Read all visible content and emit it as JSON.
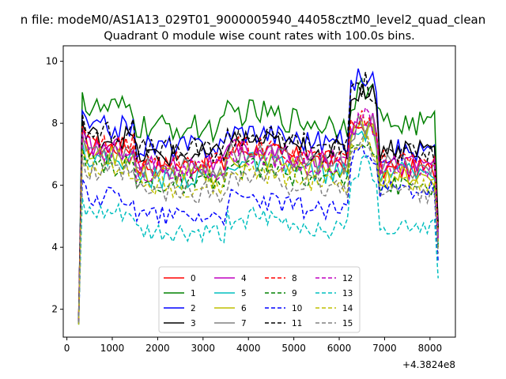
{
  "suptitle": "n file: modeM0/AS1A13_029T01_9000005940_44058cztM0_level2_quad_clean",
  "chart_data": {
    "type": "line",
    "title": "Quadrant 0 module wise count rates with 100.0s bins.",
    "xlabel": "",
    "ylabel": "",
    "x_offset_label": "+4.3824e8",
    "xlim": [
      -80,
      8560
    ],
    "ylim": [
      1.1,
      10.5
    ],
    "xticks": [
      0,
      1000,
      2000,
      3000,
      4000,
      5000,
      6000,
      7000,
      8000
    ],
    "yticks": [
      2,
      4,
      6,
      8,
      10
    ],
    "grid": false,
    "legend_position": "lower-center",
    "legend_columns": 4,
    "series": [
      {
        "name": "0",
        "color": "#ff0000",
        "dash": "solid",
        "base": 7.0,
        "peak": 8.0,
        "drop": 4.4,
        "noise": 0.35,
        "end": 6.5
      },
      {
        "name": "1",
        "color": "#008000",
        "dash": "solid",
        "base": 8.2,
        "peak": 9.2,
        "drop": 4.6,
        "noise": 0.45,
        "end": 8.0
      },
      {
        "name": "2",
        "color": "#0000ff",
        "dash": "solid",
        "base": 7.6,
        "peak": 9.6,
        "drop": 4.4,
        "noise": 0.4,
        "end": 7.1
      },
      {
        "name": "3",
        "color": "#000000",
        "dash": "solid",
        "base": 7.3,
        "peak": 9.2,
        "drop": 4.8,
        "noise": 0.4,
        "end": 7.2
      },
      {
        "name": "4",
        "color": "#bf00bf",
        "dash": "solid",
        "base": 7.0,
        "peak": 8.3,
        "drop": 4.3,
        "noise": 0.35,
        "end": 6.7
      },
      {
        "name": "5",
        "color": "#00bfbf",
        "dash": "solid",
        "base": 6.6,
        "peak": 7.8,
        "drop": 4.1,
        "noise": 0.35,
        "end": 6.4
      },
      {
        "name": "6",
        "color": "#bfbf00",
        "dash": "solid",
        "base": 6.7,
        "peak": 7.9,
        "drop": 4.2,
        "noise": 0.35,
        "end": 6.3
      },
      {
        "name": "7",
        "color": "#808080",
        "dash": "solid",
        "base": 6.9,
        "peak": 8.1,
        "drop": 4.3,
        "noise": 0.4,
        "end": 6.6
      },
      {
        "name": "8",
        "color": "#ff0000",
        "dash": "dashed",
        "base": 7.1,
        "peak": 8.3,
        "drop": 4.5,
        "noise": 0.35,
        "end": 6.8
      },
      {
        "name": "9",
        "color": "#008000",
        "dash": "dashed",
        "base": 6.4,
        "peak": 7.6,
        "drop": 4.0,
        "noise": 0.35,
        "end": 6.0
      },
      {
        "name": "10",
        "color": "#0000ff",
        "dash": "dashed",
        "base": 5.4,
        "peak": 7.3,
        "drop": 3.5,
        "noise": 0.35,
        "end": 5.8
      },
      {
        "name": "11",
        "color": "#000000",
        "dash": "dashed",
        "base": 7.5,
        "peak": 9.3,
        "drop": 4.6,
        "noise": 0.4,
        "end": 7.0
      },
      {
        "name": "12",
        "color": "#bf00bf",
        "dash": "dashed",
        "base": 6.8,
        "peak": 8.2,
        "drop": 4.2,
        "noise": 0.35,
        "end": 6.5
      },
      {
        "name": "13",
        "color": "#00bfbf",
        "dash": "dashed",
        "base": 4.8,
        "peak": 6.7,
        "drop": 3.0,
        "noise": 0.35,
        "end": 4.7
      },
      {
        "name": "14",
        "color": "#bfbf00",
        "dash": "dashed",
        "base": 6.3,
        "peak": 7.5,
        "drop": 3.9,
        "noise": 0.35,
        "end": 6.1
      },
      {
        "name": "15",
        "color": "#808080",
        "dash": "dashed",
        "base": 6.1,
        "peak": 7.4,
        "drop": 3.8,
        "noise": 0.4,
        "end": 5.8
      }
    ]
  }
}
